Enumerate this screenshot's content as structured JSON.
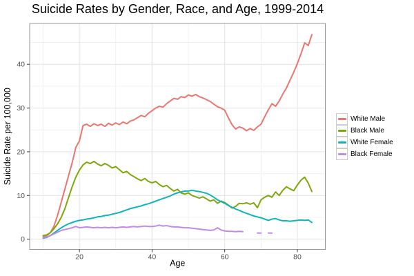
{
  "chart_data": {
    "type": "line",
    "title": "Suicide Rates by Gender, Race, and Age, 1999-2014",
    "xlabel": "Age",
    "ylabel": "Suicide Rate per 100,000",
    "xlim": [
      6.3,
      87.7
    ],
    "ylim": [
      -2.35,
      49.35
    ],
    "xticks": [
      20,
      40,
      60,
      80
    ],
    "yticks": [
      0,
      10,
      20,
      30,
      40
    ],
    "grid": true,
    "legend_position": "right",
    "x": [
      10,
      11,
      12,
      13,
      14,
      15,
      16,
      17,
      18,
      19,
      20,
      21,
      22,
      23,
      24,
      25,
      26,
      27,
      28,
      29,
      30,
      31,
      32,
      33,
      34,
      35,
      36,
      37,
      38,
      39,
      40,
      41,
      42,
      43,
      44,
      45,
      46,
      47,
      48,
      49,
      50,
      51,
      52,
      53,
      54,
      55,
      56,
      57,
      58,
      59,
      60,
      61,
      62,
      63,
      64,
      65,
      66,
      67,
      68,
      69,
      70,
      71,
      72,
      73,
      74,
      75,
      76,
      77,
      78,
      79,
      80,
      81,
      82,
      83,
      84
    ],
    "series": [
      {
        "name": "White Male",
        "color": "#e9766f",
        "values": [
          0.5,
          0.8,
          1.5,
          3.0,
          5.5,
          8.5,
          11.5,
          14.5,
          17.5,
          21.0,
          22.5,
          26.0,
          26.3,
          25.8,
          26.4,
          26.0,
          26.3,
          25.8,
          26.5,
          26.1,
          26.6,
          26.2,
          26.8,
          26.4,
          27.0,
          27.3,
          27.8,
          28.3,
          28.0,
          28.8,
          29.4,
          30.0,
          30.4,
          30.2,
          31.0,
          31.6,
          32.2,
          32.0,
          32.6,
          32.4,
          33.0,
          32.7,
          33.1,
          32.6,
          32.3,
          31.9,
          31.5,
          30.9,
          30.3,
          30.0,
          29.5,
          27.8,
          26.2,
          25.2,
          25.7,
          25.4,
          24.8,
          25.3,
          24.9,
          25.7,
          26.3,
          28.0,
          29.6,
          31.0,
          30.4,
          31.6,
          33.2,
          34.6,
          36.4,
          38.2,
          40.2,
          42.4,
          44.9,
          44.3,
          46.8
        ]
      },
      {
        "name": "Black Male",
        "color": "#7ea70a",
        "values": [
          0.8,
          1.0,
          1.5,
          2.4,
          3.5,
          5.0,
          7.0,
          9.5,
          12.0,
          14.2,
          15.8,
          17.0,
          17.6,
          17.3,
          17.8,
          17.2,
          16.8,
          17.3,
          16.9,
          16.3,
          16.6,
          15.9,
          15.2,
          15.5,
          14.8,
          14.3,
          13.8,
          13.4,
          13.9,
          13.2,
          12.9,
          13.2,
          12.5,
          12.0,
          12.3,
          11.6,
          11.0,
          11.4,
          10.6,
          10.3,
          10.6,
          10.0,
          9.7,
          9.4,
          9.7,
          9.2,
          8.7,
          9.0,
          8.2,
          8.7,
          8.4,
          7.8,
          7.1,
          7.5,
          8.2,
          8.1,
          8.3,
          8.0,
          8.3,
          7.2,
          9.0,
          9.6,
          10.0,
          9.6,
          10.8,
          10.0,
          11.2,
          12.0,
          11.5,
          11.1,
          12.4,
          13.5,
          14.2,
          12.8,
          10.9
        ]
      },
      {
        "name": "White Female",
        "color": "#0db5ba",
        "values": [
          0.2,
          0.4,
          0.8,
          1.4,
          2.0,
          2.6,
          3.1,
          3.5,
          3.8,
          4.1,
          4.3,
          4.4,
          4.6,
          4.7,
          4.9,
          5.1,
          5.2,
          5.4,
          5.5,
          5.7,
          5.9,
          6.1,
          6.4,
          6.7,
          7.0,
          7.2,
          7.4,
          7.6,
          7.9,
          8.1,
          8.4,
          8.7,
          9.0,
          9.3,
          9.6,
          9.9,
          10.3,
          10.6,
          10.8,
          11.0,
          11.0,
          11.2,
          11.0,
          10.9,
          10.7,
          10.5,
          10.1,
          9.6,
          9.0,
          8.6,
          8.2,
          7.7,
          7.3,
          6.9,
          6.6,
          6.2,
          5.9,
          5.6,
          5.3,
          5.1,
          4.9,
          4.6,
          4.3,
          4.6,
          4.7,
          4.4,
          4.2,
          4.2,
          4.1,
          4.2,
          4.3,
          4.4,
          4.3,
          4.4,
          3.8
        ]
      },
      {
        "name": "Black Female",
        "color": "#c18ae6",
        "values": [
          0.3,
          0.5,
          0.8,
          1.2,
          1.6,
          2.0,
          2.2,
          2.4,
          2.6,
          2.9,
          2.6,
          2.7,
          2.8,
          2.7,
          2.6,
          2.7,
          2.6,
          2.7,
          2.6,
          2.7,
          2.6,
          2.7,
          2.8,
          2.7,
          2.8,
          2.9,
          2.8,
          2.9,
          3.0,
          2.9,
          2.9,
          3.0,
          3.2,
          3.0,
          3.1,
          2.9,
          2.8,
          2.8,
          2.7,
          2.6,
          2.6,
          2.5,
          2.4,
          2.3,
          2.2,
          2.1,
          2.0,
          2.1,
          2.6,
          2.1,
          1.9,
          1.8,
          1.8,
          1.7,
          1.8,
          1.7,
          null,
          null,
          null,
          1.4,
          1.4,
          null,
          1.4,
          1.4,
          null,
          null,
          null,
          null,
          null,
          null,
          null,
          null,
          null,
          null,
          null
        ]
      }
    ]
  }
}
